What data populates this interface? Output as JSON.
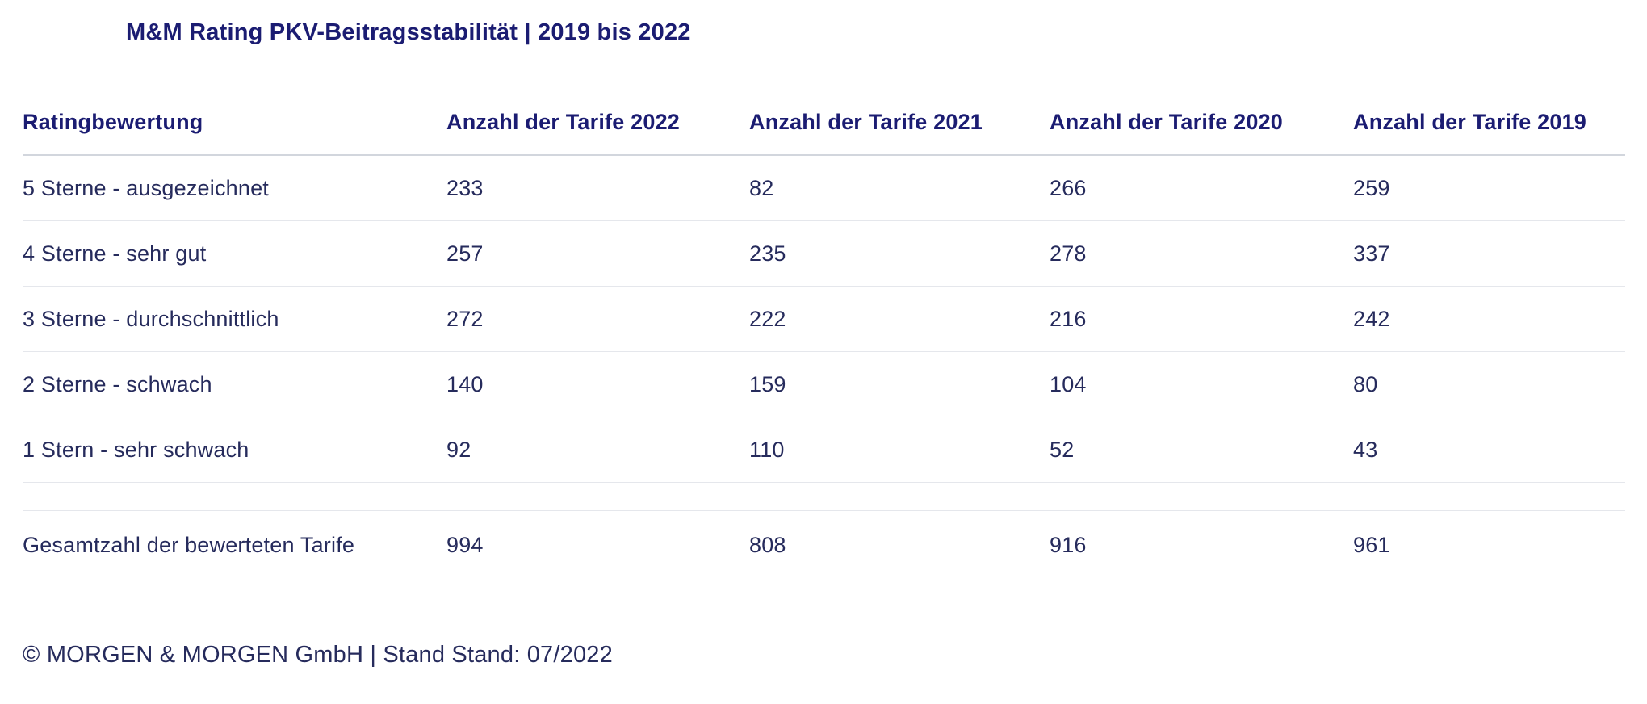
{
  "title": "M&M Rating PKV-Beitragsstabilität | 2019 bis 2022",
  "table": {
    "columns": [
      "Ratingbewertung",
      "Anzahl der Tarife 2022",
      "Anzahl der Tarife 2021",
      "Anzahl der Tarife 2020",
      "Anzahl der Tarife 2019"
    ],
    "rows": [
      {
        "label": "5 Sterne - ausgezeichnet",
        "values": [
          "233",
          "82",
          "266",
          "259"
        ]
      },
      {
        "label": "4 Sterne - sehr gut",
        "values": [
          "257",
          "235",
          "278",
          "337"
        ]
      },
      {
        "label": "3 Sterne - durchschnittlich",
        "values": [
          "272",
          "222",
          "216",
          "242"
        ]
      },
      {
        "label": "2 Sterne - schwach",
        "values": [
          "140",
          "159",
          "104",
          "80"
        ]
      },
      {
        "label": "1 Stern - sehr schwach",
        "values": [
          "92",
          "110",
          "52",
          "43"
        ]
      }
    ],
    "total": {
      "label": "Gesamtzahl der bewerteten Tarife",
      "values": [
        "994",
        "808",
        "916",
        "961"
      ]
    }
  },
  "footer": "© MORGEN & MORGEN GmbH | Stand Stand: 07/2022",
  "colors": {
    "heading": "#1b1c72",
    "body_text": "#262b5c",
    "header_border": "#d2d6dd",
    "row_border": "#e5e7ec",
    "background": "#ffffff"
  },
  "chart_data": {
    "type": "table",
    "title": "M&M Rating PKV-Beitragsstabilität | 2019 bis 2022",
    "categories": [
      "5 Sterne - ausgezeichnet",
      "4 Sterne - sehr gut",
      "3 Sterne - durchschnittlich",
      "2 Sterne - schwach",
      "1 Stern - sehr schwach"
    ],
    "series": [
      {
        "name": "Anzahl der Tarife 2022",
        "values": [
          233,
          257,
          272,
          140,
          92
        ],
        "total": 994
      },
      {
        "name": "Anzahl der Tarife 2021",
        "values": [
          82,
          235,
          222,
          159,
          110
        ],
        "total": 808
      },
      {
        "name": "Anzahl der Tarife 2020",
        "values": [
          266,
          278,
          216,
          104,
          52
        ],
        "total": 916
      },
      {
        "name": "Anzahl der Tarife 2019",
        "values": [
          259,
          337,
          242,
          80,
          43
        ],
        "total": 961
      }
    ],
    "total_row_label": "Gesamtzahl der bewerteten Tarife",
    "source": "© MORGEN & MORGEN GmbH | Stand Stand: 07/2022"
  }
}
